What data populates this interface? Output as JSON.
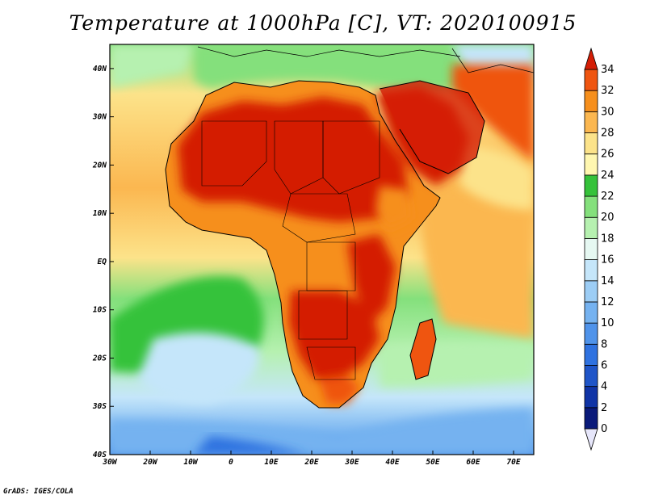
{
  "title": "Temperature at 1000hPa [C], VT: 2020100915",
  "credit": "GrADS: IGES/COLA",
  "map": {
    "lon_range": [
      -30,
      75
    ],
    "lat_range": [
      -40,
      45
    ],
    "lon_ticks": [
      "30W",
      "20W",
      "10W",
      "0",
      "10E",
      "20E",
      "30E",
      "40E",
      "50E",
      "60E",
      "70E"
    ],
    "lat_ticks": [
      "40S",
      "30S",
      "20S",
      "10S",
      "EQ",
      "10N",
      "20N",
      "30N",
      "40N"
    ]
  },
  "colorbar": {
    "labels": [
      "0",
      "2",
      "4",
      "6",
      "8",
      "10",
      "12",
      "14",
      "16",
      "18",
      "20",
      "22",
      "24",
      "26",
      "28",
      "30",
      "32",
      "34"
    ],
    "colors": [
      "#0a1a7a",
      "#1034a6",
      "#1f55c8",
      "#2f72e0",
      "#4f93ea",
      "#75b2f0",
      "#9ccdf5",
      "#c5e6fa",
      "#e6f8f2",
      "#b6f1b0",
      "#84e07c",
      "#35c23a",
      "#fff7b0",
      "#fce38a",
      "#fbb750",
      "#f68f1c",
      "#ef5510",
      "#d41e06",
      "#e6e6fa"
    ]
  }
}
